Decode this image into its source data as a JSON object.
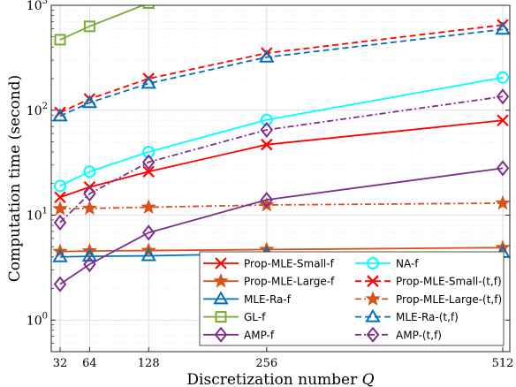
{
  "chart_data": {
    "type": "line",
    "xlabel_prefix": "Discretization number",
    "xlabel_var": "Q",
    "ylabel": "Computation time (second)",
    "x_scale": "linear",
    "y_scale": "log",
    "xlim": [
      32,
      512
    ],
    "ylim": [
      0.5,
      1000
    ],
    "x_ticks": [
      32,
      64,
      128,
      256,
      512
    ],
    "y_ticks": [
      {
        "value": 1,
        "base": "10",
        "exp": "0"
      },
      {
        "value": 10,
        "base": "10",
        "exp": "1"
      },
      {
        "value": 100,
        "base": "10",
        "exp": "2"
      },
      {
        "value": 1000,
        "base": "10",
        "exp": "3"
      }
    ],
    "grid": true,
    "minor_grid": true,
    "legend_position": "bottom-right",
    "legend_columns": 2,
    "series": [
      {
        "name": "Prop-MLE-Small-f",
        "color": "#ff0000",
        "dash": "solid",
        "marker": "x",
        "x": [
          32,
          64,
          128,
          256,
          512
        ],
        "values": [
          14.8,
          18.5,
          26,
          47,
          80
        ]
      },
      {
        "name": "NA-f",
        "color": "#00ffff",
        "dash": "solid",
        "marker": "circle",
        "x": [
          32,
          64,
          128,
          256,
          512
        ],
        "values": [
          19,
          26,
          40,
          81,
          205
        ]
      },
      {
        "name": "Prop-MLE-Large-f",
        "color": "#d95319",
        "dash": "solid",
        "marker": "star",
        "x": [
          32,
          64,
          128,
          256,
          512
        ],
        "values": [
          4.5,
          4.55,
          4.6,
          4.7,
          4.9
        ]
      },
      {
        "name": "Prop-MLE-Small-(t,f)",
        "color": "#ff0000",
        "dash": "dash",
        "marker": "x",
        "x": [
          32,
          64,
          128,
          256,
          512
        ],
        "values": [
          95,
          128,
          200,
          350,
          650
        ]
      },
      {
        "name": "MLE-Ra-f",
        "color": "#0072bd",
        "dash": "solid",
        "marker": "triangle",
        "x": [
          32,
          64,
          128,
          256,
          512
        ],
        "values": [
          4.0,
          4.05,
          4.1,
          4.3,
          4.4
        ]
      },
      {
        "name": "Prop-MLE-Large-(t,f)",
        "color": "#d95319",
        "dash": "dashdot",
        "marker": "star",
        "x": [
          32,
          64,
          128,
          256,
          512
        ],
        "values": [
          11.5,
          11.6,
          11.9,
          12.5,
          13.0
        ]
      },
      {
        "name": "GL-f",
        "color": "#77ac30",
        "dash": "solid",
        "marker": "square",
        "x": [
          32,
          64,
          128
        ],
        "values": [
          470,
          630,
          1050
        ]
      },
      {
        "name": "MLE-Ra-(t,f)",
        "color": "#0072bd",
        "dash": "dash",
        "marker": "triangle",
        "x": [
          32,
          64,
          128,
          256,
          512
        ],
        "values": [
          88,
          118,
          180,
          320,
          590
        ]
      },
      {
        "name": "AMP-f",
        "color": "#7e2f8e",
        "dash": "solid",
        "marker": "diamond",
        "x": [
          32,
          64,
          128,
          256,
          512
        ],
        "values": [
          2.2,
          3.4,
          6.8,
          14,
          28
        ]
      },
      {
        "name": "AMP-(t,f)",
        "color": "#7e2f8e",
        "dash": "dashdot",
        "marker": "diamond",
        "x": [
          32,
          64,
          128,
          256,
          512
        ],
        "values": [
          8.5,
          16,
          32,
          65,
          135
        ]
      }
    ]
  }
}
